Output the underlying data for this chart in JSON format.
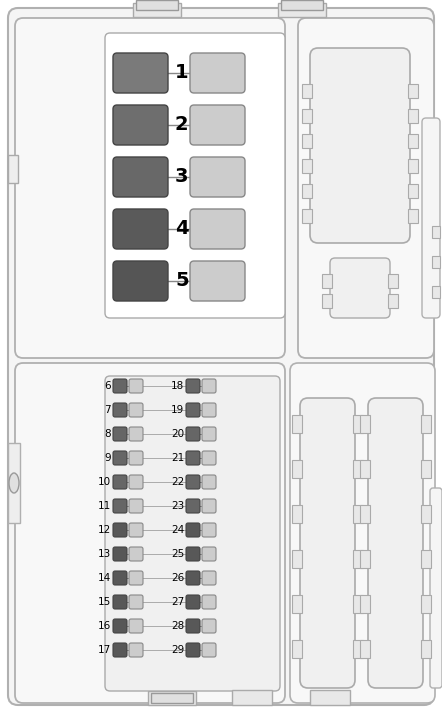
{
  "bg_color": "#ffffff",
  "border_color": "#aaaaaa",
  "panel_fill": "#f8f8f8",
  "fuse_dark_1": "#7a7a7a",
  "fuse_dark_2": "#6e6e6e",
  "fuse_dark_3": "#686868",
  "fuse_dark_4": "#5a5a5a",
  "fuse_dark_5": "#555555",
  "fuse_light": "#cccccc",
  "sf_dark": "#666666",
  "sf_light": "#cccccc",
  "top_fuse_dark_shades": [
    "#7a7a7a",
    "#6e6e6e",
    "#686868",
    "#5a5a5a",
    "#555555"
  ]
}
